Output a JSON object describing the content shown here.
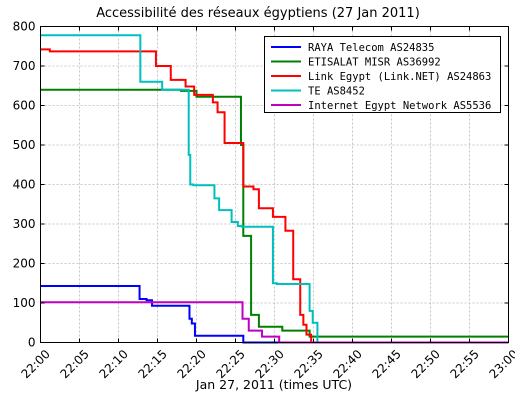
{
  "chart_data": {
    "type": "line",
    "title": "Accessibilité des réseaux égyptiens (27 Jan 2011)",
    "xlabel": "Jan 27, 2011 (times UTC)",
    "ylabel": "",
    "xlim": [
      0,
      60
    ],
    "ylim": [
      0,
      800
    ],
    "x_tick_labels": [
      "22:00",
      "22:05",
      "22:10",
      "22:15",
      "22:20",
      "22:25",
      "22:30",
      "22:35",
      "22:40",
      "22:45",
      "22:50",
      "22:55",
      "23:00"
    ],
    "y_tick_labels": [
      "0",
      "100",
      "200",
      "300",
      "400",
      "500",
      "600",
      "700",
      "800"
    ],
    "grid": true,
    "legend_position": "top-right",
    "series": [
      {
        "name": "RAYA Telecom AS24835",
        "color": "#0000ff",
        "x": [
          0,
          12.7,
          12.7,
          13.6,
          13.6,
          14.3,
          14.3,
          19.1,
          19.1,
          19.4,
          19.4,
          19.8,
          19.8,
          26.0,
          26.0,
          60
        ],
        "y": [
          143,
          143,
          110,
          110,
          107,
          107,
          93,
          93,
          60,
          60,
          48,
          48,
          17,
          17,
          0,
          0
        ]
      },
      {
        "name": "ETISALAT MISR AS36992",
        "color": "#008000",
        "x": [
          0,
          18.0,
          18.0,
          20.0,
          20.0,
          25.7,
          25.7,
          26.0,
          26.0,
          27.0,
          27.0,
          28.0,
          28.0,
          31.0,
          31.0,
          34.5,
          34.5,
          60
        ],
        "y": [
          640,
          640,
          637,
          637,
          622,
          622,
          500,
          500,
          270,
          270,
          70,
          70,
          40,
          40,
          30,
          30,
          15,
          15
        ]
      },
      {
        "name": "Link Egypt (Link.NET) AS24863",
        "color": "#ff0000",
        "x": [
          0,
          1.2,
          1.2,
          14.8,
          14.8,
          16.7,
          16.7,
          18.6,
          18.6,
          19.7,
          19.7,
          22.1,
          22.1,
          22.7,
          22.7,
          23.6,
          23.6,
          26.0,
          26.0,
          27.3,
          27.3,
          28.0,
          28.0,
          29.8,
          29.8,
          31.4,
          31.4,
          32.4,
          32.4,
          33.3,
          33.3,
          33.7,
          33.7,
          34.1,
          34.1,
          34.7,
          34.7,
          60
        ],
        "y": [
          742,
          742,
          737,
          737,
          700,
          700,
          665,
          665,
          648,
          648,
          627,
          627,
          608,
          608,
          583,
          583,
          505,
          505,
          395,
          395,
          388,
          388,
          340,
          340,
          318,
          318,
          283,
          283,
          160,
          160,
          70,
          70,
          45,
          45,
          20,
          20,
          0,
          0
        ]
      },
      {
        "name": "TE AS8452",
        "color": "#00bfbf",
        "x": [
          0,
          12.8,
          12.8,
          15.6,
          15.6,
          16.9,
          16.9,
          19.0,
          19.0,
          19.2,
          19.2,
          19.6,
          19.6,
          22.3,
          22.3,
          22.9,
          22.9,
          24.5,
          24.5,
          25.3,
          25.3,
          25.8,
          25.8,
          29.8,
          29.8,
          30.3,
          30.3,
          34.5,
          34.5,
          34.9,
          34.9,
          35.5,
          35.5,
          60
        ],
        "y": [
          778,
          778,
          660,
          660,
          640,
          640,
          640,
          640,
          475,
          475,
          400,
          400,
          398,
          398,
          365,
          365,
          335,
          335,
          305,
          305,
          295,
          295,
          293,
          293,
          150,
          150,
          148,
          148,
          80,
          80,
          50,
          50,
          0,
          0
        ]
      },
      {
        "name": "Internet Egypt Network AS5536",
        "color": "#bf00bf",
        "x": [
          0,
          25.9,
          25.9,
          26.7,
          26.7,
          28.4,
          28.4,
          30.6,
          30.6,
          60
        ],
        "y": [
          102,
          102,
          60,
          60,
          30,
          30,
          15,
          15,
          0,
          0
        ]
      }
    ]
  }
}
